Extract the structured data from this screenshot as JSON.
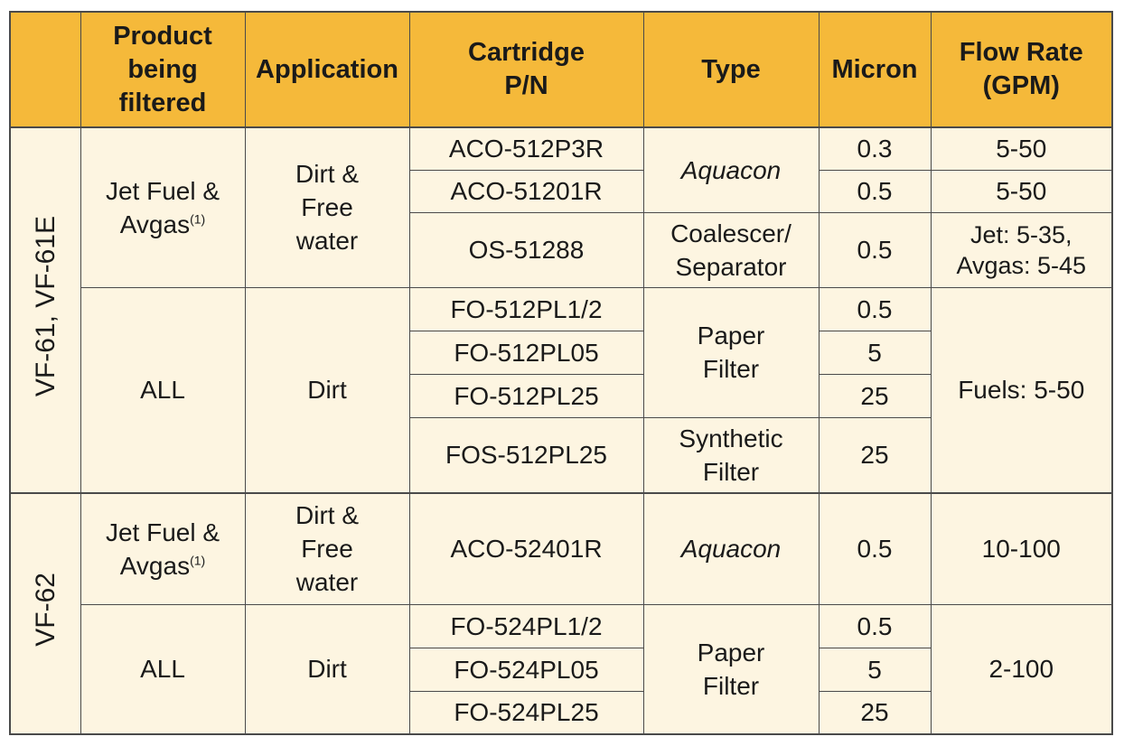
{
  "headers": {
    "blank": "",
    "product": "Product being filtered",
    "application": "Application",
    "cartridge": "Cartridge P/N",
    "type": "Type",
    "micron": "Micron",
    "flow": "Flow Rate (GPM)"
  },
  "groups": [
    {
      "model": "VF-61, VF-61E",
      "blocks": [
        {
          "product": "Jet Fuel & Avgas",
          "product_footnote": "(1)",
          "application": "Dirt & Free water",
          "rows": [
            {
              "cartridge": "ACO-512P3R",
              "micron": "0.3",
              "flow": "5-50"
            },
            {
              "cartridge": "ACO-51201R",
              "micron": "0.5",
              "flow": "5-50"
            },
            {
              "cartridge": "OS-51288",
              "micron": "0.5",
              "flow": "Jet: 5-35, Avgas: 5-45"
            }
          ],
          "types": [
            "Aquacon",
            "Coalescer/ Separator"
          ]
        },
        {
          "product": "ALL",
          "application": "Dirt",
          "flow": "Fuels: 5-50",
          "rows": [
            {
              "cartridge": "FO-512PL1/2",
              "micron": "0.5"
            },
            {
              "cartridge": "FO-512PL05",
              "micron": "5"
            },
            {
              "cartridge": "FO-512PL25",
              "micron": "25"
            },
            {
              "cartridge": "FOS-512PL25",
              "micron": "25"
            }
          ],
          "types": [
            "Paper Filter",
            "Synthetic Filter"
          ]
        }
      ]
    },
    {
      "model": "VF-62",
      "blocks": [
        {
          "product": "Jet Fuel & Avgas",
          "product_footnote": "(1)",
          "application": "Dirt & Free water",
          "rows": [
            {
              "cartridge": "ACO-52401R",
              "micron": "0.5",
              "flow": "10-100"
            }
          ],
          "types": [
            "Aquacon"
          ]
        },
        {
          "product": "ALL",
          "application": "Dirt",
          "flow": "2-100",
          "rows": [
            {
              "cartridge": "FO-524PL1/2",
              "micron": "0.5"
            },
            {
              "cartridge": "FO-524PL05",
              "micron": "5"
            },
            {
              "cartridge": "FO-524PL25",
              "micron": "25"
            }
          ],
          "types": [
            "Paper Filter"
          ]
        }
      ]
    }
  ],
  "colors": {
    "header_bg": "#f5b93a",
    "body_bg": "#fdf5e1",
    "border": "#4a4a4a"
  }
}
